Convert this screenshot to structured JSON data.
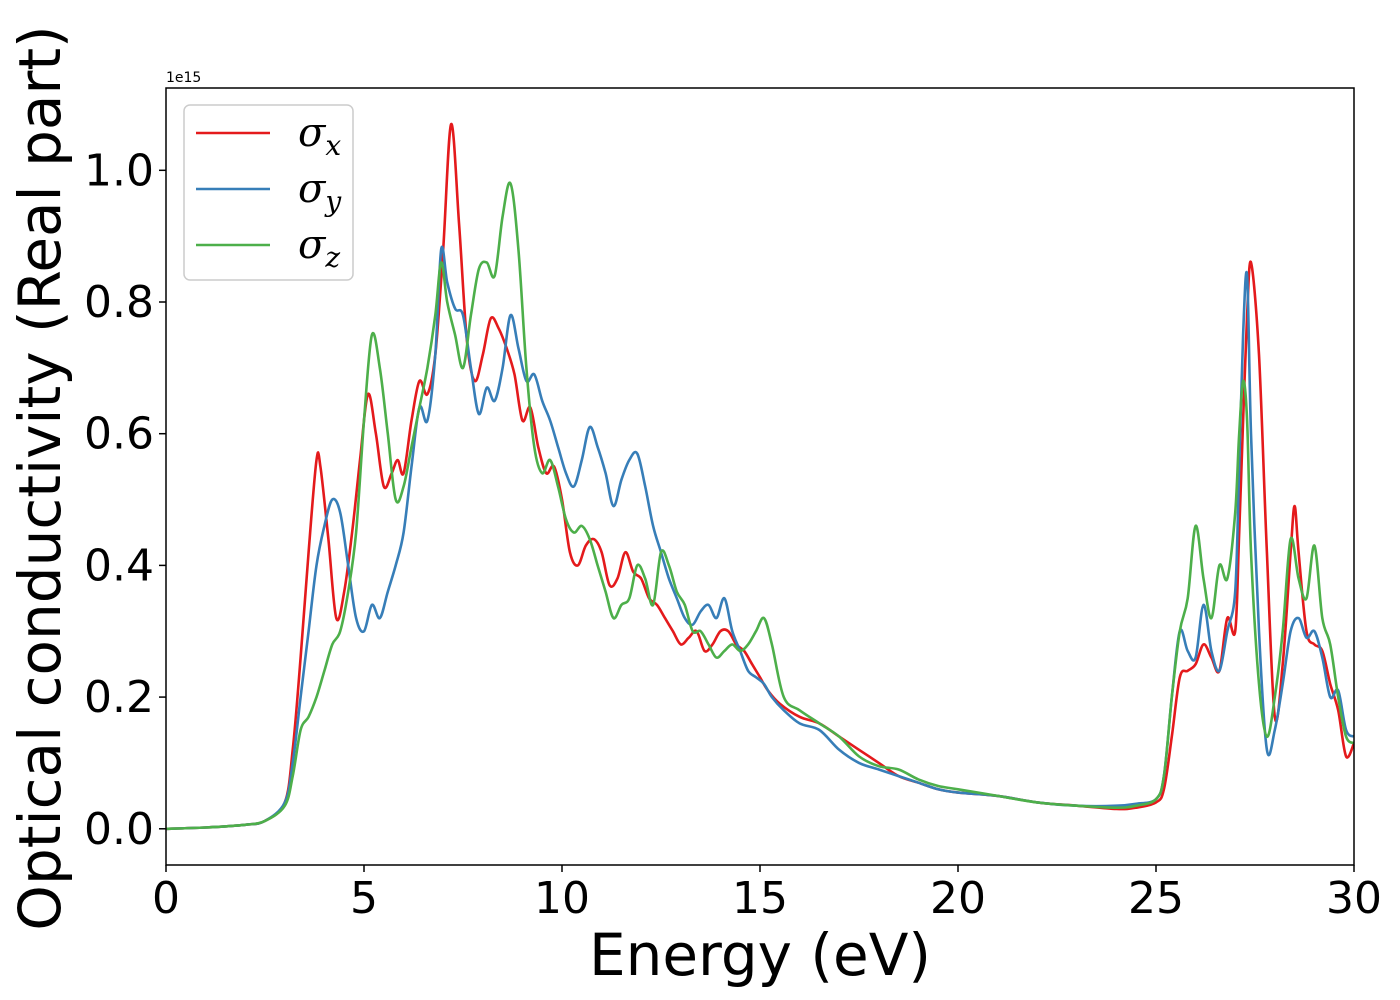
{
  "chart_data": {
    "type": "line",
    "title": "",
    "xlabel": "Energy (eV)",
    "ylabel": "Optical conductivity (Real part)",
    "y_offset_text": "1e15",
    "xlim": [
      0,
      30
    ],
    "ylim": [
      -0.055,
      1.125
    ],
    "x_ticks": [
      0,
      5,
      10,
      15,
      20,
      25,
      30
    ],
    "y_ticks": [
      0.0,
      0.2,
      0.4,
      0.6,
      0.8,
      1.0
    ],
    "x_tick_labels": [
      "0",
      "5",
      "10",
      "15",
      "20",
      "25",
      "30"
    ],
    "y_tick_labels": [
      "0.0",
      "0.2",
      "0.4",
      "0.6",
      "0.8",
      "1.0"
    ],
    "grid": false,
    "legend_position": "top-left",
    "series": [
      {
        "name": "σx",
        "symbol": "σ",
        "subscript": "x",
        "color": "#e41a1c",
        "x": [
          0,
          1,
          2,
          2.5,
          3,
          3.2,
          3.4,
          3.6,
          3.8,
          3.9,
          4.1,
          4.3,
          4.5,
          4.7,
          4.9,
          5.1,
          5.3,
          5.5,
          5.7,
          5.85,
          6.0,
          6.2,
          6.4,
          6.6,
          6.8,
          7.0,
          7.2,
          7.4,
          7.6,
          7.8,
          8.0,
          8.2,
          8.4,
          8.6,
          8.8,
          9.0,
          9.2,
          9.4,
          9.6,
          9.8,
          10.0,
          10.2,
          10.4,
          10.6,
          10.8,
          11.0,
          11.2,
          11.4,
          11.6,
          11.8,
          12.0,
          12.2,
          12.4,
          12.6,
          12.8,
          13.0,
          13.2,
          13.4,
          13.6,
          13.8,
          14.0,
          14.2,
          14.4,
          14.6,
          14.8,
          15.0,
          15.2,
          15.5,
          16.0,
          16.5,
          17.0,
          17.5,
          18.0,
          18.5,
          19.0,
          19.5,
          20.0,
          21.0,
          22.0,
          23.0,
          24.0,
          24.5,
          25.0,
          25.2,
          25.4,
          25.6,
          25.8,
          26.0,
          26.2,
          26.4,
          26.6,
          26.8,
          27.0,
          27.1,
          27.2,
          27.3,
          27.4,
          27.6,
          27.8,
          28.0,
          28.2,
          28.4,
          28.5,
          28.6,
          28.8,
          29.0,
          29.2,
          29.4,
          29.6,
          29.8,
          30.0
        ],
        "y": [
          0.0,
          0.002,
          0.006,
          0.012,
          0.04,
          0.12,
          0.26,
          0.42,
          0.56,
          0.55,
          0.44,
          0.32,
          0.36,
          0.45,
          0.56,
          0.66,
          0.6,
          0.52,
          0.54,
          0.56,
          0.54,
          0.62,
          0.68,
          0.66,
          0.72,
          0.88,
          1.07,
          0.92,
          0.74,
          0.68,
          0.72,
          0.775,
          0.76,
          0.73,
          0.69,
          0.62,
          0.64,
          0.58,
          0.54,
          0.55,
          0.5,
          0.42,
          0.4,
          0.43,
          0.44,
          0.42,
          0.37,
          0.38,
          0.42,
          0.39,
          0.38,
          0.35,
          0.34,
          0.32,
          0.3,
          0.28,
          0.29,
          0.3,
          0.27,
          0.28,
          0.3,
          0.3,
          0.28,
          0.27,
          0.25,
          0.23,
          0.21,
          0.19,
          0.17,
          0.16,
          0.14,
          0.12,
          0.1,
          0.08,
          0.07,
          0.06,
          0.055,
          0.05,
          0.04,
          0.035,
          0.03,
          0.032,
          0.04,
          0.06,
          0.14,
          0.23,
          0.24,
          0.25,
          0.28,
          0.26,
          0.24,
          0.32,
          0.3,
          0.45,
          0.62,
          0.78,
          0.86,
          0.72,
          0.42,
          0.17,
          0.25,
          0.42,
          0.49,
          0.42,
          0.3,
          0.28,
          0.27,
          0.22,
          0.18,
          0.11,
          0.13
        ]
      },
      {
        "name": "σy",
        "symbol": "σ",
        "subscript": "y",
        "color": "#377eb8",
        "x": [
          0,
          1,
          2,
          2.5,
          3,
          3.2,
          3.4,
          3.6,
          3.8,
          4.0,
          4.2,
          4.4,
          4.6,
          4.8,
          5.0,
          5.2,
          5.4,
          5.6,
          5.8,
          6.0,
          6.2,
          6.4,
          6.6,
          6.8,
          6.95,
          7.1,
          7.3,
          7.5,
          7.7,
          7.9,
          8.1,
          8.3,
          8.5,
          8.7,
          8.9,
          9.1,
          9.3,
          9.5,
          9.7,
          9.9,
          10.1,
          10.3,
          10.5,
          10.7,
          10.9,
          11.1,
          11.3,
          11.5,
          11.7,
          11.9,
          12.1,
          12.3,
          12.5,
          12.7,
          12.9,
          13.1,
          13.3,
          13.5,
          13.7,
          13.9,
          14.1,
          14.3,
          14.5,
          14.7,
          14.9,
          15.1,
          15.3,
          15.6,
          16.0,
          16.5,
          17.0,
          17.5,
          18.0,
          18.5,
          19.0,
          19.5,
          20.0,
          21.0,
          22.0,
          23.0,
          24.0,
          24.5,
          25.0,
          25.2,
          25.4,
          25.6,
          25.8,
          26.0,
          26.2,
          26.4,
          26.6,
          26.8,
          27.0,
          27.1,
          27.2,
          27.3,
          27.4,
          27.6,
          27.8,
          28.0,
          28.2,
          28.4,
          28.6,
          28.8,
          29.0,
          29.2,
          29.4,
          29.6,
          29.8,
          30.0
        ],
        "y": [
          0.0,
          0.002,
          0.006,
          0.012,
          0.04,
          0.1,
          0.2,
          0.3,
          0.4,
          0.46,
          0.5,
          0.48,
          0.4,
          0.32,
          0.3,
          0.34,
          0.32,
          0.36,
          0.4,
          0.45,
          0.55,
          0.64,
          0.62,
          0.72,
          0.88,
          0.83,
          0.79,
          0.78,
          0.7,
          0.63,
          0.67,
          0.65,
          0.7,
          0.78,
          0.73,
          0.68,
          0.69,
          0.65,
          0.62,
          0.58,
          0.54,
          0.52,
          0.56,
          0.61,
          0.58,
          0.54,
          0.49,
          0.53,
          0.56,
          0.57,
          0.52,
          0.46,
          0.42,
          0.38,
          0.35,
          0.32,
          0.31,
          0.33,
          0.34,
          0.32,
          0.35,
          0.3,
          0.27,
          0.24,
          0.23,
          0.22,
          0.2,
          0.18,
          0.16,
          0.15,
          0.12,
          0.1,
          0.09,
          0.08,
          0.07,
          0.06,
          0.055,
          0.05,
          0.04,
          0.035,
          0.035,
          0.038,
          0.045,
          0.08,
          0.2,
          0.3,
          0.27,
          0.26,
          0.34,
          0.27,
          0.24,
          0.3,
          0.36,
          0.55,
          0.75,
          0.84,
          0.6,
          0.3,
          0.12,
          0.15,
          0.22,
          0.3,
          0.32,
          0.29,
          0.3,
          0.26,
          0.2,
          0.21,
          0.15,
          0.14
        ]
      },
      {
        "name": "σz",
        "symbol": "σ",
        "subscript": "z",
        "color": "#4daf4a",
        "x": [
          0,
          1,
          2,
          2.5,
          3,
          3.2,
          3.4,
          3.6,
          3.8,
          4.0,
          4.2,
          4.4,
          4.6,
          4.8,
          5.0,
          5.2,
          5.4,
          5.6,
          5.8,
          6.0,
          6.2,
          6.4,
          6.6,
          6.8,
          6.95,
          7.1,
          7.3,
          7.5,
          7.7,
          7.9,
          8.1,
          8.3,
          8.5,
          8.7,
          8.9,
          9.1,
          9.3,
          9.5,
          9.7,
          9.9,
          10.1,
          10.3,
          10.5,
          10.7,
          10.9,
          11.1,
          11.3,
          11.5,
          11.7,
          11.9,
          12.1,
          12.3,
          12.5,
          12.7,
          12.9,
          13.1,
          13.3,
          13.5,
          13.7,
          13.9,
          14.1,
          14.3,
          14.5,
          14.7,
          14.9,
          15.1,
          15.3,
          15.6,
          16.0,
          16.5,
          17.0,
          17.5,
          18.0,
          18.5,
          19.0,
          19.5,
          20.0,
          21.0,
          22.0,
          23.0,
          24.0,
          24.5,
          25.0,
          25.2,
          25.4,
          25.6,
          25.8,
          26.0,
          26.2,
          26.4,
          26.6,
          26.8,
          27.0,
          27.1,
          27.2,
          27.3,
          27.4,
          27.6,
          27.8,
          28.0,
          28.2,
          28.4,
          28.6,
          28.8,
          29.0,
          29.2,
          29.4,
          29.6,
          29.8,
          30.0
        ],
        "y": [
          0.0,
          0.002,
          0.006,
          0.012,
          0.035,
          0.08,
          0.15,
          0.17,
          0.2,
          0.24,
          0.28,
          0.3,
          0.36,
          0.45,
          0.62,
          0.75,
          0.7,
          0.6,
          0.5,
          0.52,
          0.58,
          0.64,
          0.7,
          0.78,
          0.86,
          0.8,
          0.75,
          0.7,
          0.78,
          0.85,
          0.86,
          0.84,
          0.93,
          0.98,
          0.88,
          0.7,
          0.58,
          0.54,
          0.56,
          0.52,
          0.47,
          0.45,
          0.46,
          0.44,
          0.4,
          0.36,
          0.32,
          0.34,
          0.35,
          0.4,
          0.38,
          0.34,
          0.42,
          0.4,
          0.36,
          0.34,
          0.3,
          0.3,
          0.28,
          0.26,
          0.27,
          0.28,
          0.27,
          0.28,
          0.3,
          0.32,
          0.28,
          0.2,
          0.18,
          0.16,
          0.14,
          0.11,
          0.095,
          0.09,
          0.075,
          0.065,
          0.06,
          0.05,
          0.04,
          0.035,
          0.032,
          0.035,
          0.045,
          0.08,
          0.2,
          0.3,
          0.35,
          0.46,
          0.38,
          0.32,
          0.4,
          0.38,
          0.48,
          0.6,
          0.68,
          0.62,
          0.42,
          0.22,
          0.14,
          0.2,
          0.3,
          0.44,
          0.38,
          0.35,
          0.43,
          0.32,
          0.28,
          0.2,
          0.14,
          0.13
        ]
      }
    ]
  }
}
